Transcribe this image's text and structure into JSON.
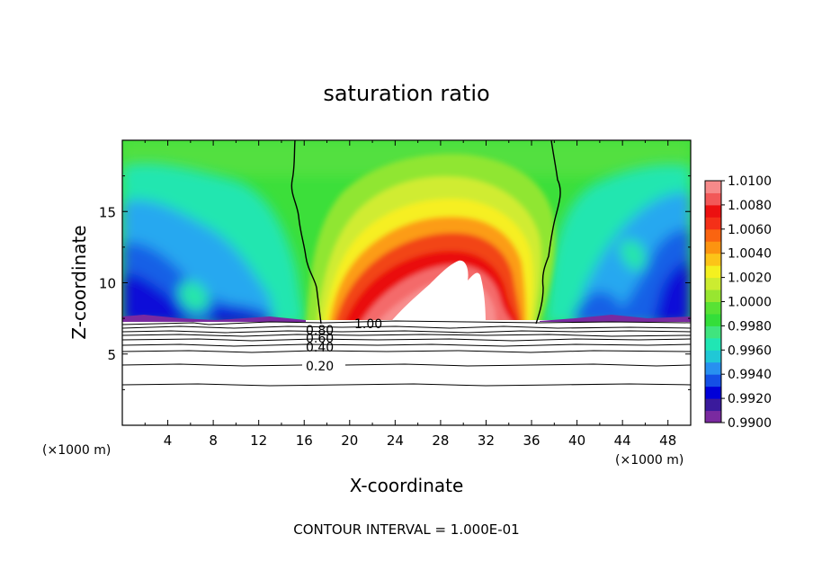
{
  "chart_data": {
    "type": "heatmap",
    "title": "saturation ratio",
    "xlabel": "X-coordinate",
    "ylabel": "Z-coordinate",
    "x_unit": "(×1000 m)",
    "y_unit": "(×1000 m)",
    "footer": "CONTOUR INTERVAL = 1.000E-01",
    "xlim": [
      0,
      50
    ],
    "ylim": [
      0,
      20
    ],
    "x_ticks": [
      4,
      8,
      12,
      16,
      20,
      24,
      28,
      32,
      36,
      40,
      44,
      48
    ],
    "y_ticks": [
      5,
      10,
      15
    ],
    "colorbar": {
      "min": 0.99,
      "max": 1.01,
      "step": 0.001,
      "labels": [
        "1.0100",
        "1.0080",
        "1.0060",
        "1.0040",
        "1.0020",
        "1.0000",
        "0.9980",
        "0.9960",
        "0.9940",
        "0.9920",
        "0.9900"
      ],
      "colors": [
        "#7a2aa0",
        "#3a1a9c",
        "#0000d8",
        "#1450e6",
        "#2890f0",
        "#20c8d6",
        "#20e6b4",
        "#40e47e",
        "#34de3a",
        "#58e234",
        "#98e630",
        "#ccec30",
        "#f4f020",
        "#fcc418",
        "#fc9410",
        "#fa6410",
        "#f43018",
        "#ec1010",
        "#f25858",
        "#f68a8a"
      ]
    },
    "contour_labels": [
      {
        "value": "1.00",
        "x": 20.2,
        "z": 7.05
      },
      {
        "value": "0.80",
        "x": 18.2,
        "z": 6.78
      },
      {
        "value": "0.60",
        "x": 18.2,
        "z": 6.35
      },
      {
        "value": "0.40",
        "x": 18.2,
        "z": 5.55
      },
      {
        "value": "0.20",
        "x": 17.6,
        "z": 4.1
      }
    ],
    "contour_levels_z": [
      7.0,
      6.75,
      6.55,
      6.4,
      6.2,
      5.55,
      5.1,
      4.25,
      2.85
    ]
  }
}
